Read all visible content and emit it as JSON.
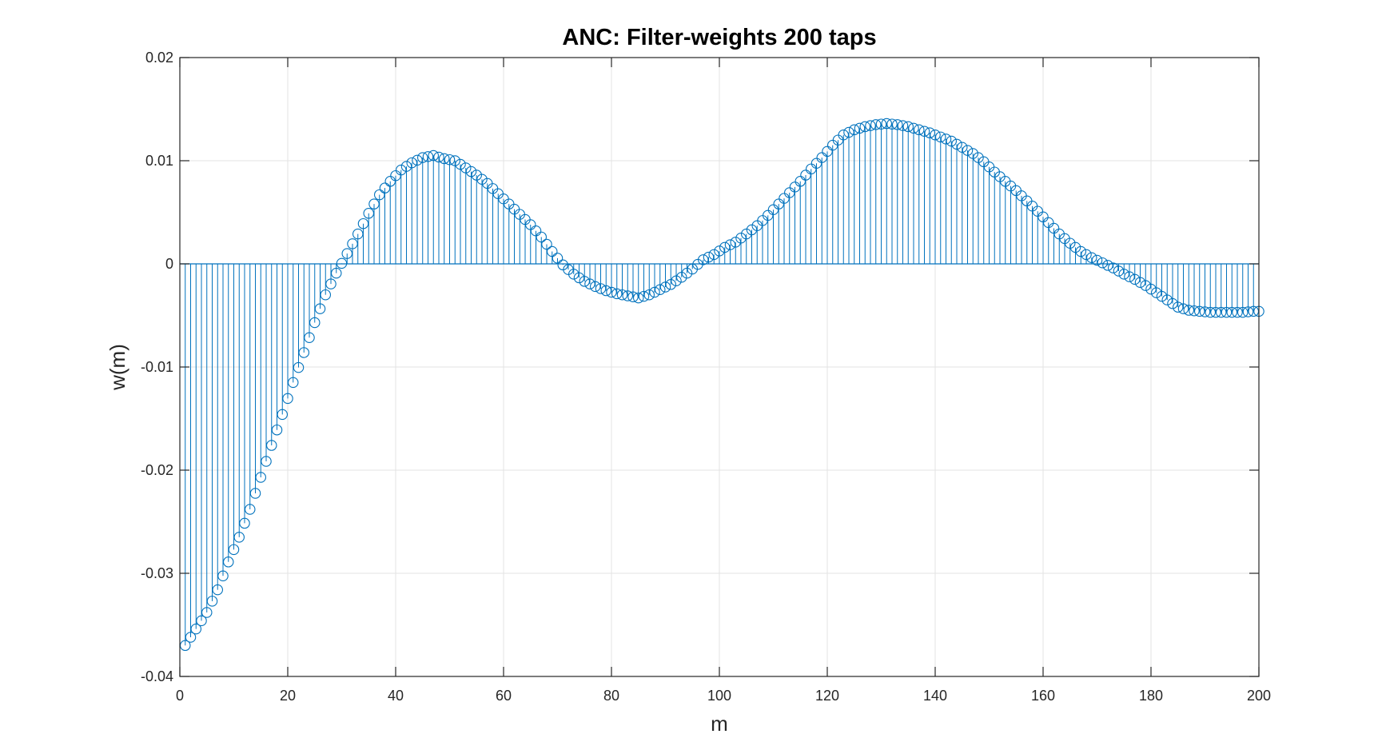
{
  "chart_data": {
    "type": "stem",
    "title": "ANC: Filter-weights 200 taps",
    "xlabel": "m",
    "ylabel": "w(m)",
    "xlim": [
      0,
      200
    ],
    "ylim": [
      -0.04,
      0.02
    ],
    "xticks": [
      0,
      20,
      40,
      60,
      80,
      100,
      120,
      140,
      160,
      180,
      200
    ],
    "yticks": [
      -0.04,
      -0.03,
      -0.02,
      -0.01,
      0,
      0.01,
      0.02
    ],
    "xtick_labels": [
      "0",
      "20",
      "40",
      "60",
      "80",
      "100",
      "120",
      "140",
      "160",
      "180",
      "200"
    ],
    "ytick_labels": [
      "-0.04",
      "-0.03",
      "-0.02",
      "-0.01",
      "0",
      "0.01",
      "0.02"
    ],
    "grid": true,
    "legend": null,
    "marker": "open-circle",
    "series_color": "#0072BD",
    "knots": [
      [
        1,
        -0.037
      ],
      [
        3,
        -0.0354
      ],
      [
        5,
        -0.0338
      ],
      [
        7,
        -0.0316
      ],
      [
        9,
        -0.0289
      ],
      [
        11,
        -0.0265
      ],
      [
        13,
        -0.0238
      ],
      [
        15,
        -0.0207
      ],
      [
        17,
        -0.0176
      ],
      [
        19,
        -0.0146
      ],
      [
        21,
        -0.0115
      ],
      [
        23,
        -0.0086
      ],
      [
        25,
        -0.0057
      ],
      [
        27,
        -0.003
      ],
      [
        29,
        -0.0009
      ],
      [
        31,
        0.001
      ],
      [
        33,
        0.0029
      ],
      [
        35,
        0.0049
      ],
      [
        37,
        0.0067
      ],
      [
        39,
        0.008
      ],
      [
        41,
        0.0091
      ],
      [
        43,
        0.0098
      ],
      [
        45,
        0.0103
      ],
      [
        47,
        0.0105
      ],
      [
        49,
        0.0102
      ],
      [
        51,
        0.01
      ],
      [
        53,
        0.0093
      ],
      [
        55,
        0.0086
      ],
      [
        57,
        0.0078
      ],
      [
        59,
        0.0068
      ],
      [
        61,
        0.0058
      ],
      [
        63,
        0.0048
      ],
      [
        65,
        0.0038
      ],
      [
        67,
        0.0026
      ],
      [
        69,
        0.0012
      ],
      [
        71,
        -0.0001
      ],
      [
        73,
        -0.001
      ],
      [
        75,
        -0.0017
      ],
      [
        77,
        -0.0022
      ],
      [
        79,
        -0.0026
      ],
      [
        81,
        -0.0029
      ],
      [
        83,
        -0.0031
      ],
      [
        85,
        -0.0033
      ],
      [
        87,
        -0.003
      ],
      [
        89,
        -0.0025
      ],
      [
        91,
        -0.002
      ],
      [
        93,
        -0.0013
      ],
      [
        95,
        -0.0005
      ],
      [
        97,
        0.0004
      ],
      [
        99,
        0.0009
      ],
      [
        101,
        0.0016
      ],
      [
        103,
        0.0021
      ],
      [
        105,
        0.0029
      ],
      [
        107,
        0.0037
      ],
      [
        109,
        0.0047
      ],
      [
        111,
        0.0058
      ],
      [
        113,
        0.0069
      ],
      [
        115,
        0.008
      ],
      [
        117,
        0.0092
      ],
      [
        119,
        0.0103
      ],
      [
        121,
        0.0115
      ],
      [
        123,
        0.0125
      ],
      [
        125,
        0.013
      ],
      [
        127,
        0.0133
      ],
      [
        129,
        0.0135
      ],
      [
        131,
        0.0136
      ],
      [
        133,
        0.0135
      ],
      [
        135,
        0.0133
      ],
      [
        137,
        0.013
      ],
      [
        139,
        0.0127
      ],
      [
        141,
        0.0123
      ],
      [
        143,
        0.0119
      ],
      [
        145,
        0.0113
      ],
      [
        147,
        0.0107
      ],
      [
        149,
        0.0099
      ],
      [
        151,
        0.0089
      ],
      [
        153,
        0.008
      ],
      [
        155,
        0.0071
      ],
      [
        157,
        0.0061
      ],
      [
        159,
        0.0051
      ],
      [
        161,
        0.004
      ],
      [
        163,
        0.0029
      ],
      [
        165,
        0.002
      ],
      [
        167,
        0.0012
      ],
      [
        169,
        0.0006
      ],
      [
        171,
        0.0001
      ],
      [
        173,
        -0.0004
      ],
      [
        175,
        -0.001
      ],
      [
        177,
        -0.0015
      ],
      [
        179,
        -0.0021
      ],
      [
        181,
        -0.0028
      ],
      [
        183,
        -0.0035
      ],
      [
        185,
        -0.0042
      ],
      [
        187,
        -0.0045
      ],
      [
        189,
        -0.0046
      ],
      [
        191,
        -0.0047
      ],
      [
        193,
        -0.0047
      ],
      [
        195,
        -0.0047
      ],
      [
        197,
        -0.0047
      ],
      [
        199,
        -0.0046
      ],
      [
        200,
        -0.0046
      ]
    ]
  }
}
